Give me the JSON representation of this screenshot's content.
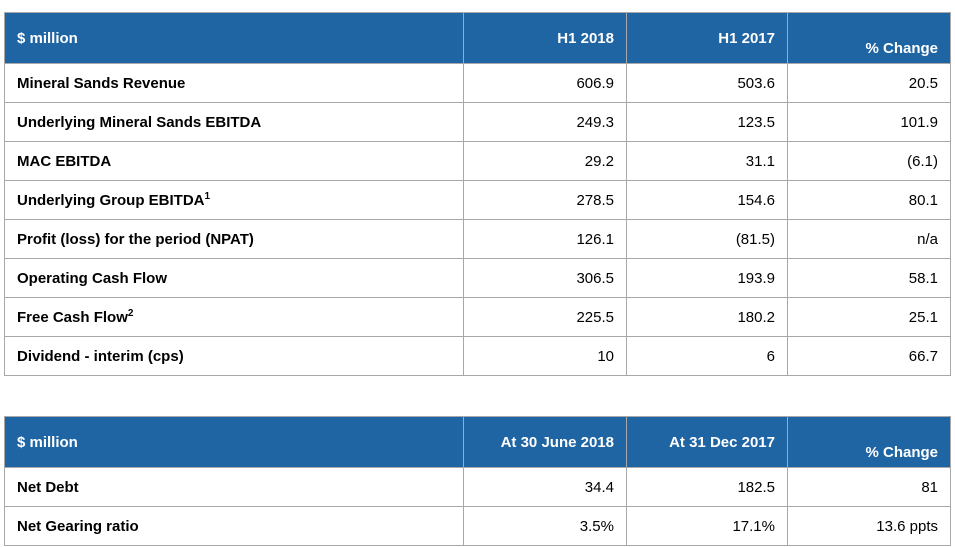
{
  "table1": {
    "headers": [
      "$ million",
      "H1 2018",
      "H1 2017",
      "% Change"
    ],
    "rows": [
      {
        "label": "Mineral Sands Revenue",
        "sup": "",
        "h1_2018": "606.9",
        "h1_2017": "503.6",
        "change": "20.5"
      },
      {
        "label": "Underlying Mineral Sands EBITDA",
        "sup": "",
        "h1_2018": "249.3",
        "h1_2017": "123.5",
        "change": "101.9"
      },
      {
        "label": "MAC EBITDA",
        "sup": "",
        "h1_2018": "29.2",
        "h1_2017": "31.1",
        "change": "(6.1)"
      },
      {
        "label": "Underlying Group EBITDA",
        "sup": "1",
        "h1_2018": "278.5",
        "h1_2017": "154.6",
        "change": "80.1"
      },
      {
        "label": "Profit (loss) for the period (NPAT)",
        "sup": "",
        "h1_2018": "126.1",
        "h1_2017": "(81.5)",
        "change": "n/a"
      },
      {
        "label": "Operating Cash Flow",
        "sup": "",
        "h1_2018": "306.5",
        "h1_2017": "193.9",
        "change": "58.1"
      },
      {
        "label": "Free Cash Flow",
        "sup": "2",
        "h1_2018": "225.5",
        "h1_2017": "180.2",
        "change": "25.1"
      },
      {
        "label": "Dividend - interim (cps)",
        "sup": "",
        "h1_2018": "10",
        "h1_2017": "6",
        "change": "66.7"
      }
    ]
  },
  "table2": {
    "headers": [
      "$ million",
      "At 30 June 2018",
      "At 31 Dec 2017",
      "% Change"
    ],
    "rows": [
      {
        "label": "Net Debt",
        "jun_2018": "34.4",
        "dec_2017": "182.5",
        "change": "81"
      },
      {
        "label": "Net Gearing ratio",
        "jun_2018": "3.5%",
        "dec_2017": "17.1%",
        "change": "13.6 ppts"
      }
    ]
  }
}
